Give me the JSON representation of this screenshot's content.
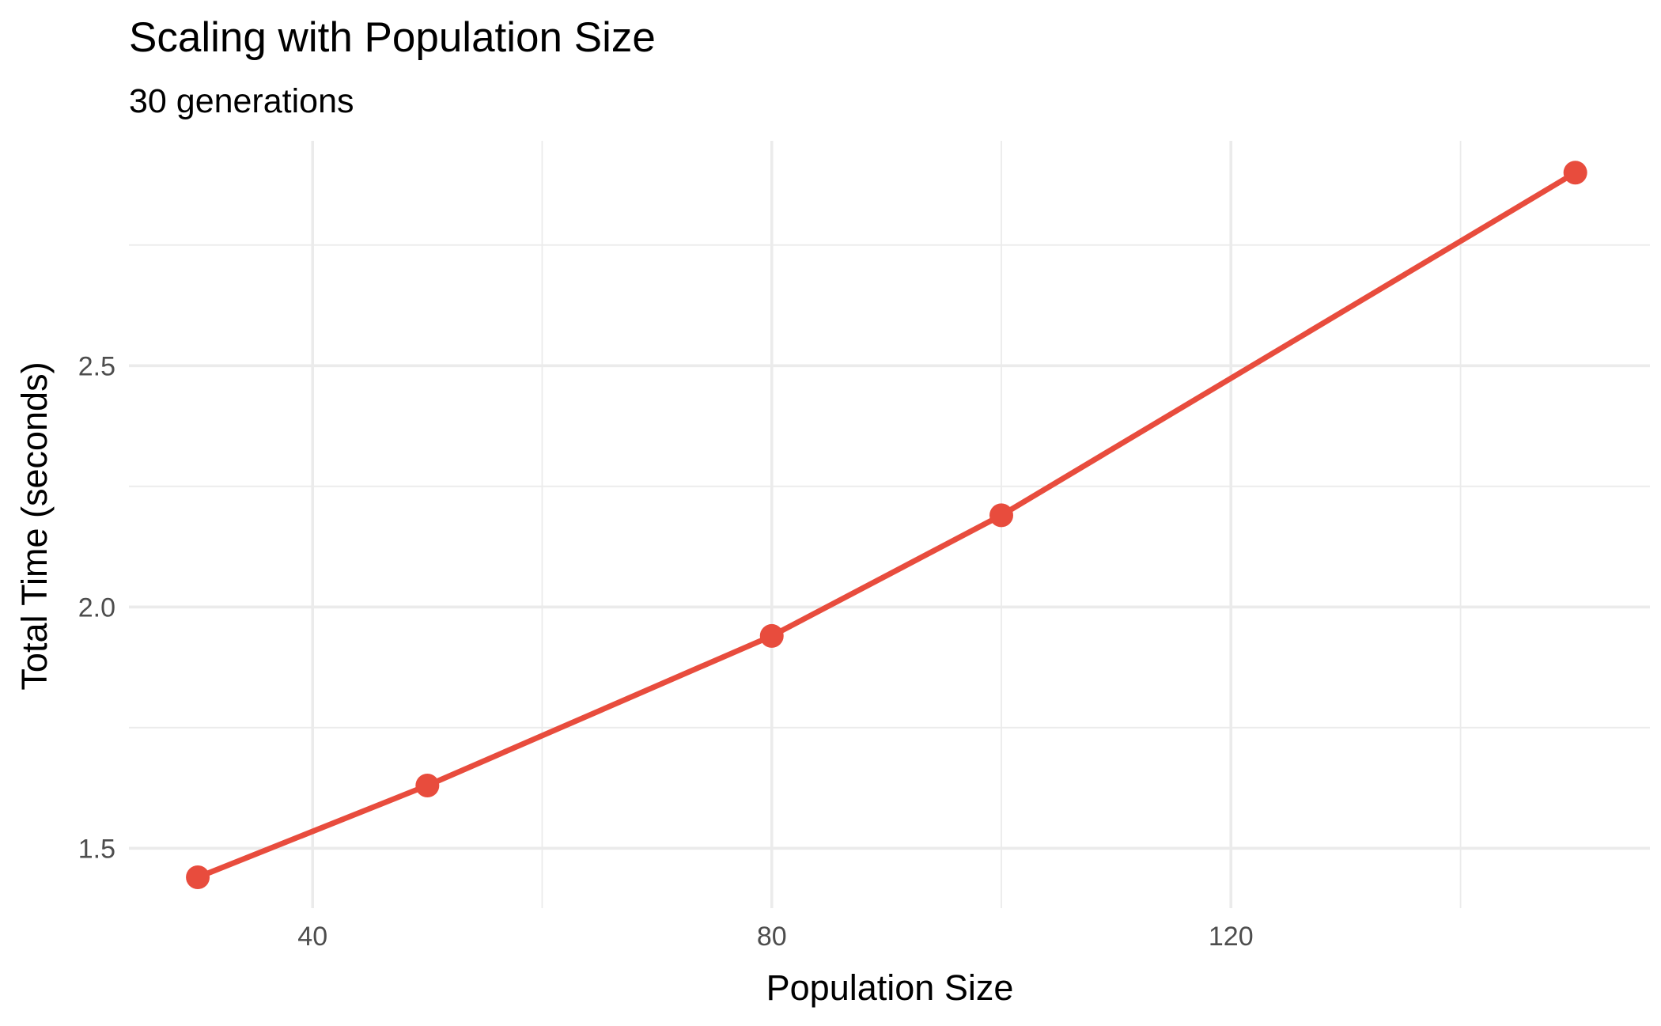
{
  "chart_data": {
    "type": "line",
    "title": "Scaling with Population Size",
    "subtitle": "30 generations",
    "xlabel": "Population Size",
    "ylabel": "Total Time (seconds)",
    "x": [
      30,
      50,
      80,
      100,
      150
    ],
    "series": [
      {
        "values": [
          1.44,
          1.63,
          1.94,
          2.19,
          2.9
        ],
        "color": "#E84C3D"
      }
    ],
    "xlim": [
      24,
      156.5
    ],
    "ylim": [
      1.376,
      2.966
    ],
    "x_ticks": [
      40,
      80,
      120
    ],
    "x_tick_labels": [
      "40",
      "80",
      "120"
    ],
    "x_minor_ticks": [
      60,
      100,
      140
    ],
    "y_ticks": [
      1.5,
      2.0,
      2.5
    ],
    "y_tick_labels": [
      "1.5",
      "2.0",
      "2.5"
    ],
    "y_minor_ticks": [
      1.75,
      2.25,
      2.75
    ],
    "grid": true,
    "legend": "none"
  }
}
